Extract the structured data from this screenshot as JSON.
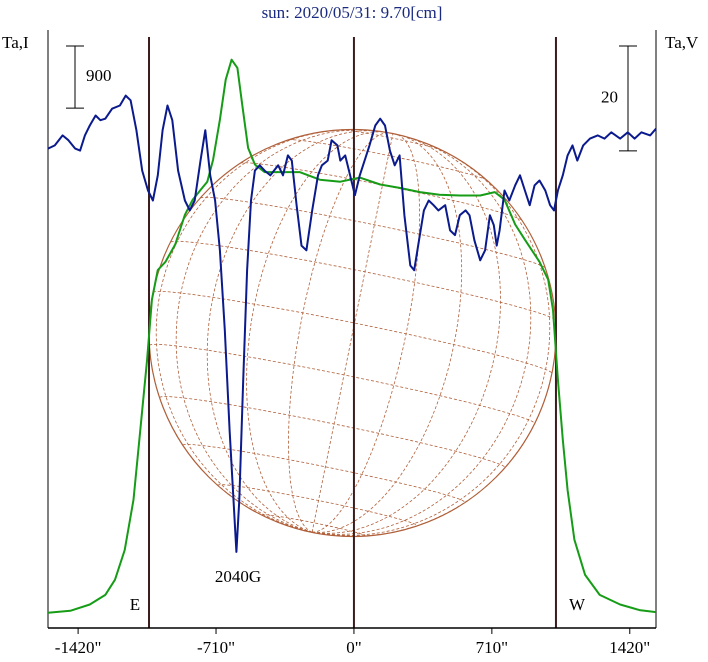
{
  "chart_data": {
    "type": "line",
    "title": "sun: 2020/05/31: 9.70[cm]",
    "ylabel": "Ta,I",
    "y2label": "Ta,V",
    "xlim": [
      -1575,
      1555
    ],
    "ylim": [
      -220,
      8450
    ],
    "y2lim": [
      -92,
      22
    ],
    "xticks": [
      {
        "value": -1420,
        "label": "-1420\""
      },
      {
        "value": -710,
        "label": "-710\""
      },
      {
        "value": 0,
        "label": "0\""
      },
      {
        "value": 710,
        "label": "710\""
      },
      {
        "value": 1420,
        "label": "1420\""
      }
    ],
    "markers_x": [
      -1055,
      0,
      1040
    ],
    "scale_bars": [
      {
        "value": 900,
        "axis": "y"
      },
      {
        "value": 20,
        "axis": "y2"
      }
    ],
    "annotations": [
      "E",
      "W",
      "2040G"
    ],
    "series": [
      {
        "color": "#169c16",
        "axis": "y",
        "x": [
          -1575,
          -1460,
          -1360,
          -1280,
          -1230,
          -1180,
          -1135,
          -1100,
          -1065,
          -1040,
          -1010,
          -970,
          -920,
          -870,
          -830,
          -790,
          -755,
          -725,
          -690,
          -660,
          -630,
          -600,
          -575,
          -545,
          -510,
          -460,
          -380,
          -280,
          -175,
          -70,
          30,
          135,
          235,
          340,
          440,
          545,
          650,
          725,
          775,
          830,
          880,
          955,
          1000,
          1025,
          1050,
          1075,
          1100,
          1135,
          1190,
          1265,
          1370,
          1470,
          1555
        ],
        "values": [
          0,
          30,
          120,
          260,
          480,
          910,
          1640,
          2650,
          3670,
          4540,
          4970,
          5090,
          5340,
          5770,
          5990,
          6130,
          6250,
          6570,
          7150,
          7730,
          8020,
          7900,
          7370,
          6740,
          6500,
          6390,
          6390,
          6390,
          6280,
          6250,
          6310,
          6210,
          6160,
          6100,
          6060,
          6050,
          6050,
          6100,
          5990,
          5630,
          5410,
          5090,
          4830,
          4390,
          3380,
          2510,
          1780,
          1060,
          550,
          260,
          120,
          40,
          10
        ]
      },
      {
        "color": "#0b1a8c",
        "axis": "y2",
        "x": [
          -1575,
          -1540,
          -1500,
          -1470,
          -1435,
          -1410,
          -1385,
          -1360,
          -1330,
          -1305,
          -1280,
          -1245,
          -1205,
          -1175,
          -1150,
          -1120,
          -1090,
          -1060,
          -1035,
          -1010,
          -985,
          -960,
          -935,
          -905,
          -870,
          -845,
          -820,
          -790,
          -765,
          -740,
          -715,
          -690,
          -665,
          -640,
          -620,
          -605,
          -590,
          -570,
          -550,
          -530,
          -510,
          -485,
          -460,
          -430,
          -390,
          -365,
          -340,
          -320,
          -295,
          -270,
          -245,
          -215,
          -185,
          -165,
          -135,
          -115,
          -85,
          -70,
          -45,
          -20,
          5,
          30,
          55,
          80,
          110,
          135,
          160,
          185,
          210,
          235,
          260,
          290,
          310,
          335,
          360,
          385,
          410,
          435,
          470,
          495,
          520,
          545,
          575,
          595,
          620,
          650,
          675,
          700,
          720,
          735,
          750,
          775,
          800,
          830,
          855,
          880,
          905,
          930,
          955,
          985,
          1010,
          1030,
          1050,
          1075,
          1100,
          1125,
          1150,
          1180,
          1215,
          1255,
          1290,
          1325,
          1370,
          1410,
          1445,
          1480,
          1525,
          1555
        ],
        "values": [
          -0.6,
          0,
          1.9,
          1.0,
          -0.6,
          -1.0,
          1.9,
          3.8,
          5.7,
          4.8,
          5.1,
          7.0,
          7.6,
          9.5,
          8.6,
          2.9,
          -4.8,
          -8.6,
          -10.5,
          -5.7,
          2.9,
          7.6,
          4.8,
          -4.8,
          -10.5,
          -12.4,
          -10.5,
          -2.9,
          2.9,
          -5.7,
          -10.5,
          -20.0,
          -35.2,
          -54.3,
          -67.6,
          -77.5,
          -67.6,
          -44.8,
          -23.8,
          -10.5,
          -4.8,
          -3.8,
          -4.8,
          -5.7,
          -3.8,
          -5.7,
          -1.9,
          -2.9,
          -11.4,
          -19.1,
          -20.0,
          -12.4,
          -5.7,
          -3.8,
          -2.9,
          1.0,
          0,
          -2.9,
          -1.9,
          -5.7,
          -9.5,
          -5.7,
          -2.9,
          0,
          3.8,
          5.1,
          3.8,
          -1.0,
          -3.8,
          -1.9,
          -13.3,
          -22.9,
          -23.8,
          -18.1,
          -12.4,
          -10.5,
          -11.4,
          -12.4,
          -11.4,
          -16.2,
          -17.1,
          -13.3,
          -12.4,
          -13.3,
          -18.1,
          -21.9,
          -20.0,
          -13.3,
          -15.2,
          -19.1,
          -16.2,
          -8.6,
          -10.5,
          -7.6,
          -5.7,
          -8.6,
          -11.4,
          -7.6,
          -6.7,
          -8.6,
          -11.4,
          -12.4,
          -8.6,
          -5.7,
          -1.9,
          0,
          -2.9,
          0,
          1.3,
          1.9,
          1.3,
          2.5,
          1.3,
          2.5,
          1.3,
          2.5,
          1.9,
          3.2
        ]
      }
    ]
  }
}
